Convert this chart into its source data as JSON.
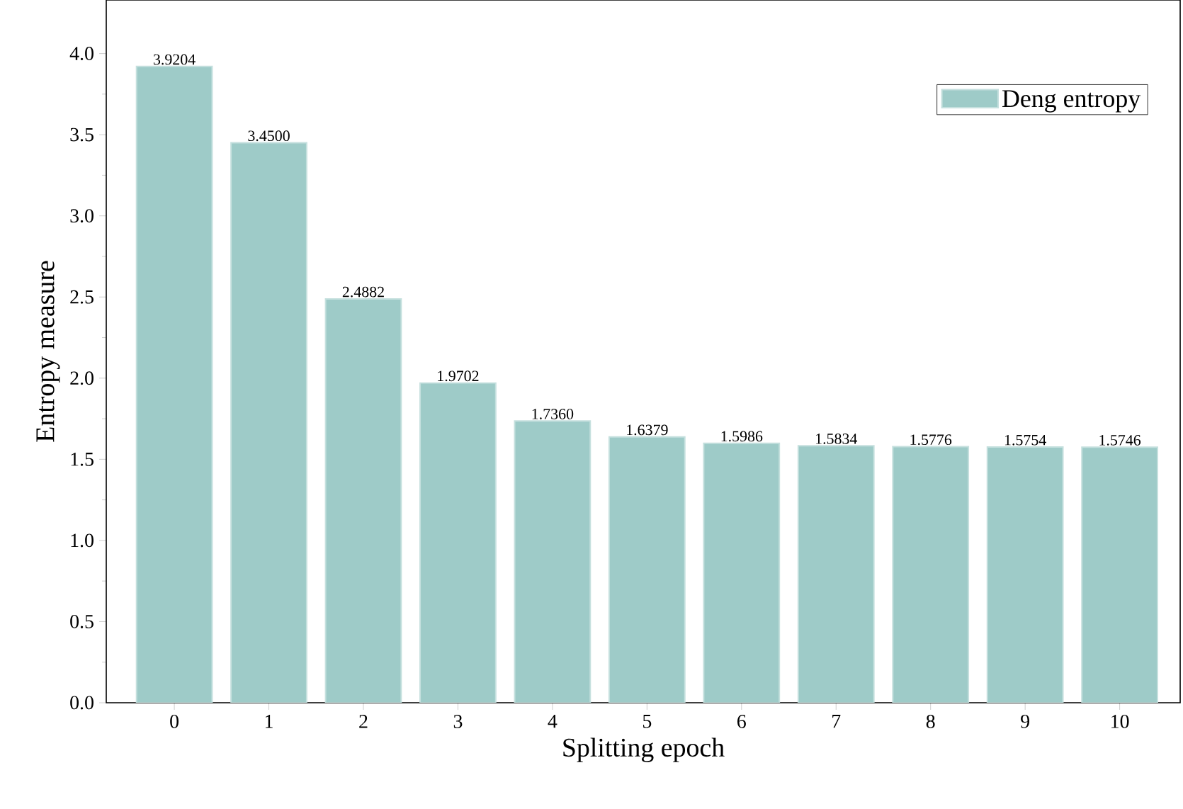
{
  "chart_data": {
    "type": "bar",
    "xlabel": "Splitting epoch",
    "ylabel": "Entropy measure",
    "categories": [
      "0",
      "1",
      "2",
      "3",
      "4",
      "5",
      "6",
      "7",
      "8",
      "9",
      "10"
    ],
    "series": [
      {
        "name": "Deng entropy",
        "color": "#9ecbc8",
        "values": [
          3.9204,
          3.45,
          2.4882,
          1.9702,
          1.736,
          1.6379,
          1.5986,
          1.5834,
          1.5776,
          1.5754,
          1.5746
        ],
        "value_labels": [
          "3.9204",
          "3.4500",
          "2.4882",
          "1.9702",
          "1.7360",
          "1.6379",
          "1.5986",
          "1.5834",
          "1.5776",
          "1.5754",
          "1.5746"
        ]
      }
    ],
    "ylim": [
      0,
      4.33
    ],
    "yticks": [
      {
        "value": 0,
        "label": "0.0"
      },
      {
        "value": 0.5,
        "label": "0.5"
      },
      {
        "value": 1,
        "label": "1.0"
      },
      {
        "value": 1.5,
        "label": "1.5"
      },
      {
        "value": 2,
        "label": "2.0"
      },
      {
        "value": 2.5,
        "label": "2.5"
      },
      {
        "value": 3,
        "label": "3.0"
      },
      {
        "value": 3.5,
        "label": "3.5"
      },
      {
        "value": 4,
        "label": "4.0"
      }
    ],
    "legend": "top right"
  }
}
